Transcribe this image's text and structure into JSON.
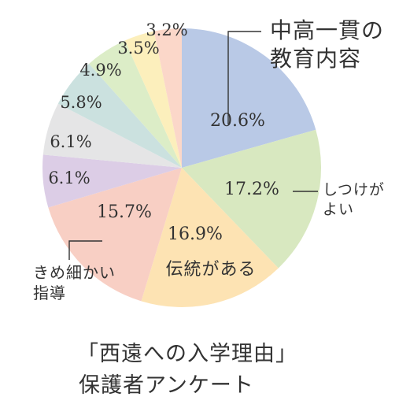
{
  "chart_data": {
    "type": "pie",
    "title": "「西遠への入学理由」",
    "subtitle": "保護者アンケート",
    "slices": [
      {
        "value": 20.6,
        "value_label": "20.6%",
        "name_lines": [
          "中高一貫の",
          "教育内容"
        ],
        "color": "#b9c9e6"
      },
      {
        "value": 17.2,
        "value_label": "17.2%",
        "name_lines": [
          "しつけが",
          "よい"
        ],
        "color": "#d8e8c0"
      },
      {
        "value": 16.9,
        "value_label": "16.9%",
        "name_lines": [
          "伝統がある"
        ],
        "color": "#fde3b3"
      },
      {
        "value": 15.7,
        "value_label": "15.7%",
        "name_lines": [
          "きめ細かい",
          "指導"
        ],
        "color": "#f8cfc4"
      },
      {
        "value": 6.1,
        "value_label": "6.1%",
        "name_lines": [],
        "color": "#dccde6"
      },
      {
        "value": 6.1,
        "value_label": "6.1%",
        "name_lines": [],
        "color": "#e5e5e6"
      },
      {
        "value": 5.8,
        "value_label": "5.8%",
        "name_lines": [],
        "color": "#cbe1df"
      },
      {
        "value": 4.9,
        "value_label": "4.9%",
        "name_lines": [],
        "color": "#dcedc7"
      },
      {
        "value": 3.5,
        "value_label": "3.5%",
        "name_lines": [],
        "color": "#fcefbc"
      },
      {
        "value": 3.2,
        "value_label": "3.2%",
        "name_lines": [],
        "color": "#fbd7c9"
      }
    ]
  }
}
